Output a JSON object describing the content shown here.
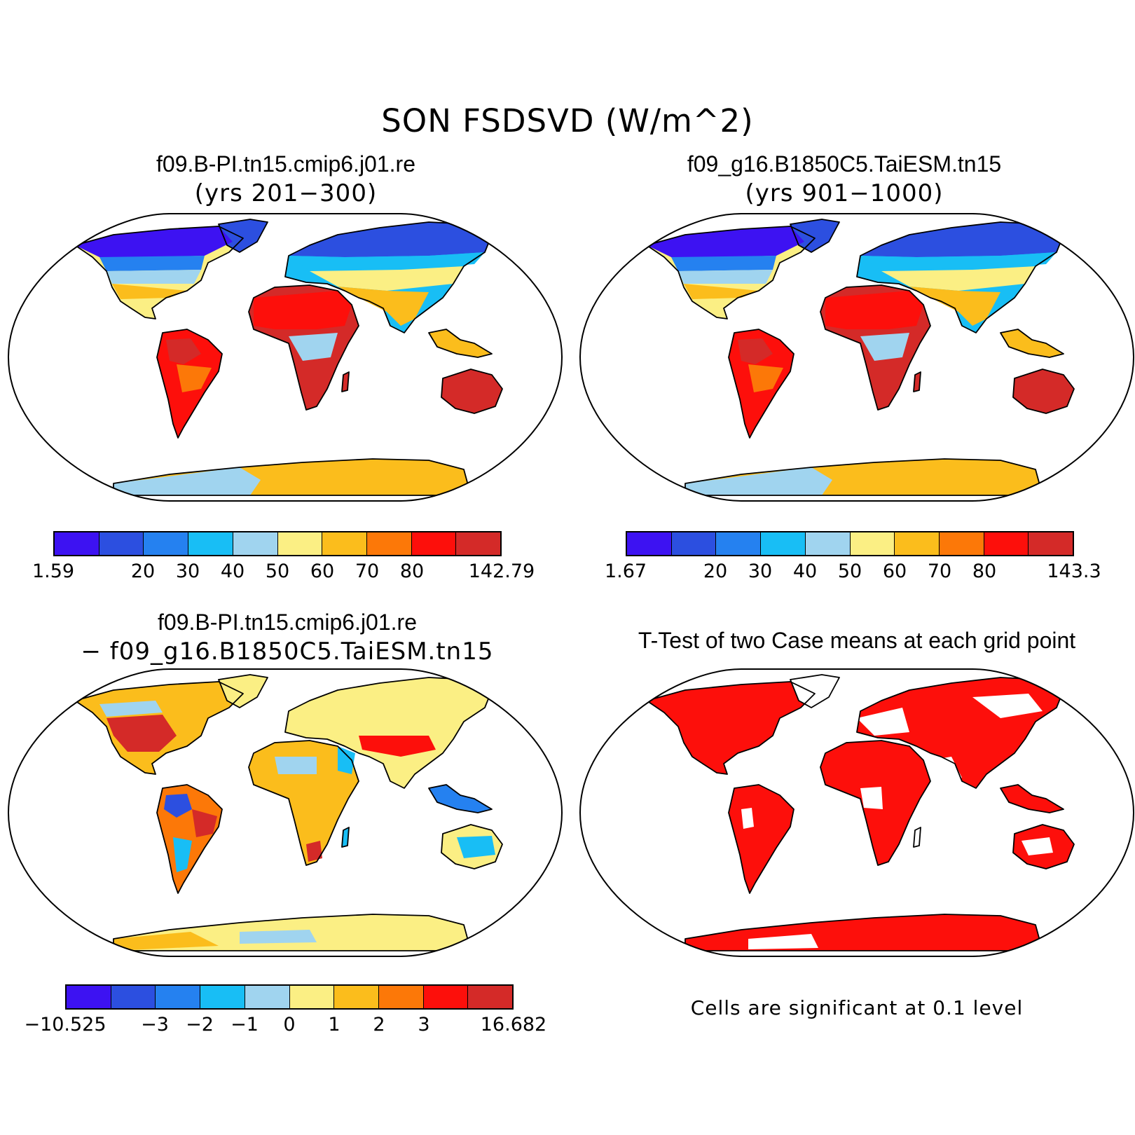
{
  "title": "SON FSDSVD (W/m^2)",
  "colors": [
    "#3d12f2",
    "#2c4fe0",
    "#2581f0",
    "#18bef5",
    "#a0d4ef",
    "#fbef84",
    "#fbbd1c",
    "#fc7808",
    "#fd0f0b",
    "#d42a28"
  ],
  "panels": {
    "top_left": {
      "title_line1": "f09.B-PI.tn15.cmip6.j01.re",
      "title_line2": "(yrs 201−300)",
      "colorbar_labels": [
        "1.59",
        "20",
        "30",
        "40",
        "50",
        "60",
        "70",
        "80",
        "142.79"
      ]
    },
    "top_right": {
      "title_line1": "f09_g16.B1850C5.TaiESM.tn15",
      "title_line2": "(yrs 901−1000)",
      "colorbar_labels": [
        "1.67",
        "20",
        "30",
        "40",
        "50",
        "60",
        "70",
        "80",
        "143.3"
      ]
    },
    "bottom_left": {
      "title_line1": "f09.B-PI.tn15.cmip6.j01.re",
      "title_line2": "− f09_g16.B1850C5.TaiESM.tn15",
      "colorbar_labels": [
        "−10.525",
        "−3",
        "−2",
        "−1",
        "0",
        "1",
        "2",
        "3",
        "16.682"
      ]
    },
    "bottom_right": {
      "title": "T-Test of two Case means at each grid point",
      "note": "Cells are significant at 0.1 level",
      "sig_color": "#fd0f0b"
    }
  }
}
